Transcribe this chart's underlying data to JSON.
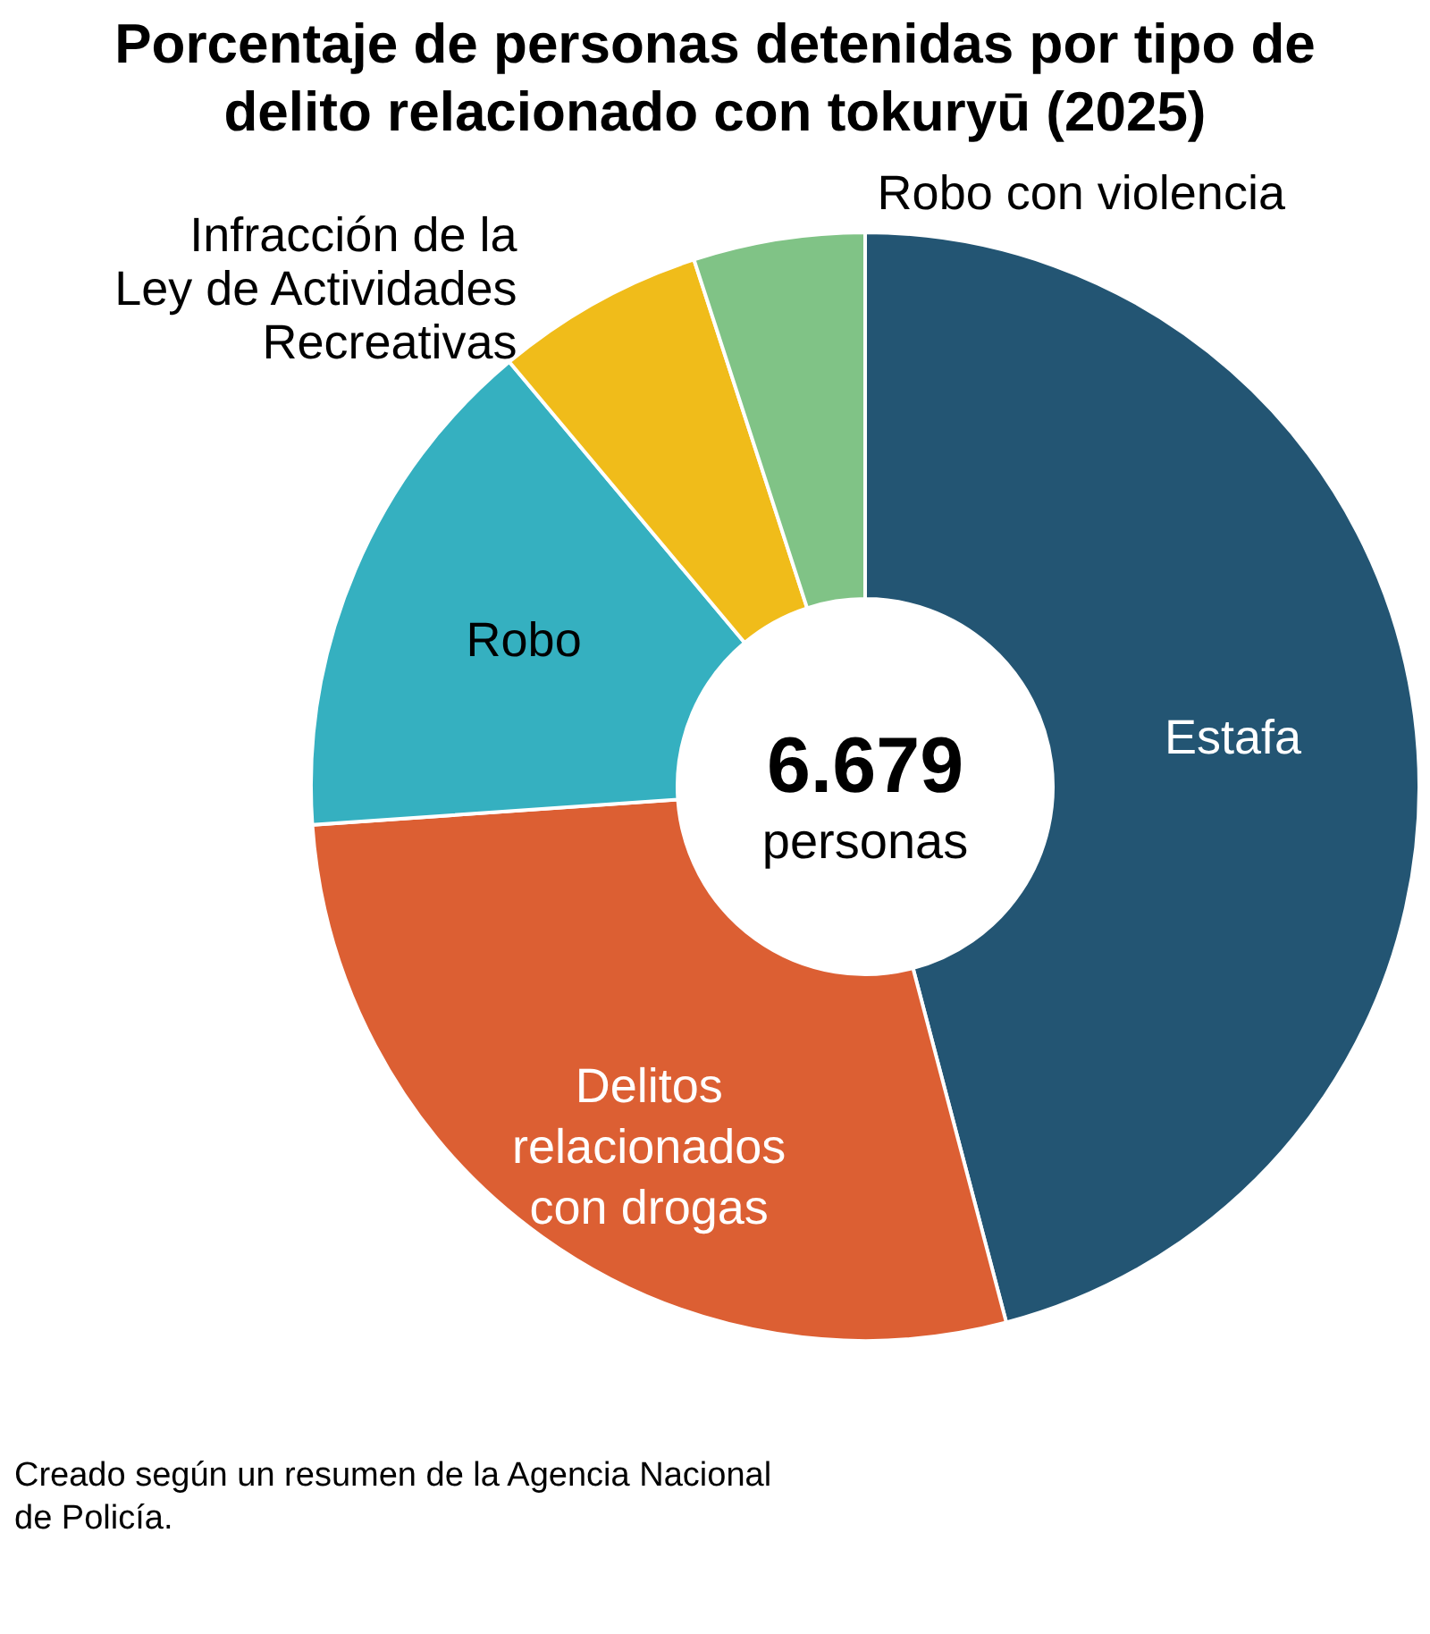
{
  "chart_data": {
    "type": "donut",
    "title": "Porcentaje de personas detenidas por tipo de delito relacionado con tokuryū (2025)",
    "categories": [
      "Estafa",
      "Delitos relacionados con drogas",
      "Robo",
      "Infracción de la Ley de Actividades Recreativas",
      "Robo con violencia"
    ],
    "values": [
      45.9,
      28.0,
      15.0,
      6.1,
      5.0
    ],
    "colors": [
      "#235573",
      "#dc5f33",
      "#35b0c0",
      "#f0bc1a",
      "#80c386"
    ],
    "annotations": [
      "6.679 personas",
      "Creado según un resumen de la Agencia Nacional de Policía."
    ],
    "legend": false
  }
}
